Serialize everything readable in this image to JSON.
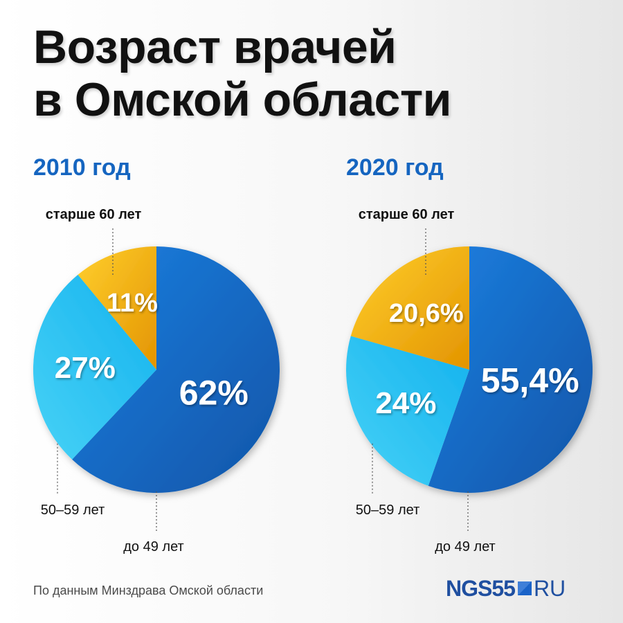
{
  "header": {
    "title_line1": "Возраст врачей",
    "title_line2": "в Омской области"
  },
  "footer": {
    "source": "По данным Минздрава Омской области",
    "logo_main": "NGS55",
    "logo_suffix": "RU"
  },
  "colors": {
    "under_49": "#1a6fd0",
    "age_50_59": "#2ec4f2",
    "over_60": "#f0a800",
    "year_title": "#1565c0",
    "value_label": "#ffffff",
    "category_label": "#111111"
  },
  "chart_data": [
    {
      "type": "pie",
      "title": "2010 год",
      "categories": [
        "до 49 лет",
        "50–59 лет",
        "старше 60 лет"
      ],
      "values": [
        62,
        27,
        11
      ],
      "value_labels": [
        "62%",
        "27%",
        "11%"
      ]
    },
    {
      "type": "pie",
      "title": "2020 год",
      "categories": [
        "до 49 лет",
        "50–59 лет",
        "старше 60 лет"
      ],
      "values": [
        55.4,
        24,
        20.6
      ],
      "value_labels": [
        "55,4%",
        "24%",
        "20,6%"
      ]
    }
  ]
}
